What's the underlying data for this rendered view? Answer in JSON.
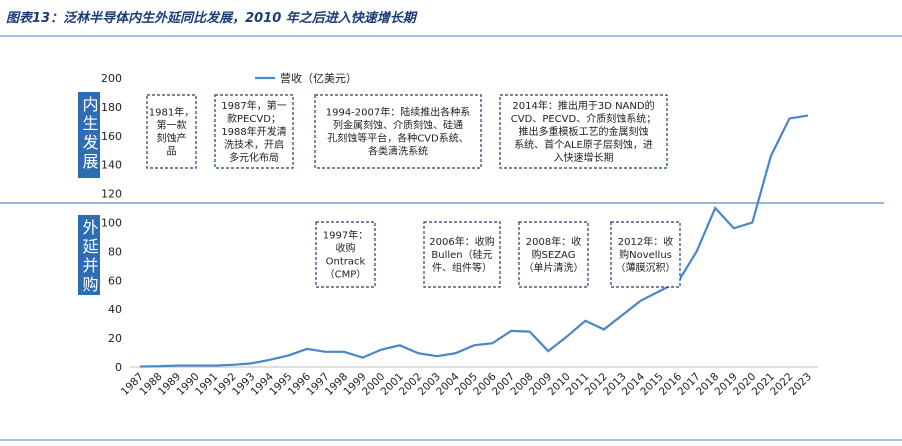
{
  "chart_data": {
    "type": "line",
    "title": "图表13：泛林半导体内生外延同比发展，2010 年之后进入快速增长期",
    "categories": [
      "1987",
      "1988",
      "1989",
      "1990",
      "1991",
      "1992",
      "1993",
      "1994",
      "1995",
      "1996",
      "1997",
      "1998",
      "1999",
      "2000",
      "2001",
      "2002",
      "2003",
      "2004",
      "2005",
      "2006",
      "2007",
      "2008",
      "2009",
      "2010",
      "2011",
      "2012",
      "2013",
      "2014",
      "2015",
      "2016",
      "2017",
      "2018",
      "2019",
      "2020",
      "2021",
      "2022",
      "2023"
    ],
    "series": [
      {
        "name": "营收（亿美元）",
        "color": "#4a86c8",
        "values": [
          0.3,
          0.5,
          1,
          1,
          1,
          1.5,
          2.5,
          5,
          8,
          12.5,
          10.5,
          10.5,
          6.5,
          12,
          15,
          9.5,
          7.5,
          9.5,
          15,
          16.5,
          25,
          24.5,
          11,
          21,
          32,
          26,
          36,
          46,
          52.5,
          59,
          80,
          110,
          96,
          100,
          146,
          172,
          174
        ]
      }
    ],
    "ylim": [
      0,
      200
    ],
    "yticks": [
      0,
      20,
      40,
      60,
      80,
      100,
      120,
      140,
      160,
      180,
      200
    ],
    "legend": "top",
    "side_labels": [
      "内生发展",
      "外延并购"
    ],
    "annotations": [
      {
        "lines": [
          "1981年，",
          "第一款",
          "刻蚀产",
          "品"
        ]
      },
      {
        "lines": [
          "1987年，第一",
          "款PECVD；",
          "1988年开发清",
          "洗技术，开启",
          "多元化布局"
        ]
      },
      {
        "lines": [
          "1994-2007年：陆续推出各种系",
          "列金属刻蚀、介质刻蚀、硅通",
          "孔刻蚀等平台，各种CVD系统、",
          "各类清洗系统"
        ]
      },
      {
        "lines": [
          "2014年：推出用于3D NAND的",
          "CVD、PECVD、介质刻蚀系统；",
          "推出多重模板工艺的金属刻蚀",
          "系统、首个ALE原子层刻蚀，进",
          "入快速增长期"
        ]
      },
      {
        "lines": [
          "1997年：",
          "收购",
          "Ontrack",
          "（CMP）"
        ]
      },
      {
        "lines": [
          "2006年：收购",
          "Bullen（硅元",
          "件、组件等）"
        ]
      },
      {
        "lines": [
          "2008年：收",
          "购SEZAG",
          "（单片清洗）"
        ]
      },
      {
        "lines": [
          "2012年：收",
          "购Novellus",
          "（薄膜沉积）"
        ]
      }
    ]
  }
}
